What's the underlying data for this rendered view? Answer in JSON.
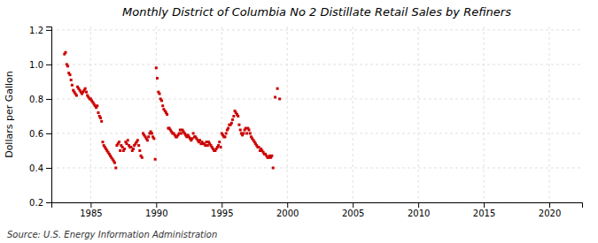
{
  "chart_data": {
    "type": "scatter",
    "title": "Monthly District of Columbia No 2 Distillate Retail Sales by Refiners",
    "ylabel": "Dollars per Gallon",
    "annotations": [
      "Source: U.S. Energy Information Administration"
    ],
    "color": "#cc0000",
    "marker": "square",
    "grid": true,
    "xlim": [
      1982.0,
      2022.5
    ],
    "ylim": [
      0.2,
      1.22
    ],
    "xticks": [
      1985,
      1990,
      1995,
      2000,
      2005,
      2010,
      2015,
      2020
    ],
    "yticks": [
      0.2,
      0.4,
      0.6,
      0.8,
      {
        "value": 1.0,
        "label": "1.0"
      },
      1.2
    ],
    "x": [
      1983.0,
      1983.08,
      1983.17,
      1983.25,
      1983.33,
      1983.42,
      1983.5,
      1983.58,
      1983.67,
      1983.75,
      1983.83,
      1983.92,
      1984.0,
      1984.08,
      1984.17,
      1984.25,
      1984.33,
      1984.42,
      1984.5,
      1984.58,
      1984.67,
      1984.75,
      1984.83,
      1984.92,
      1985.0,
      1985.08,
      1985.17,
      1985.25,
      1985.33,
      1985.42,
      1985.5,
      1985.58,
      1985.67,
      1985.75,
      1985.83,
      1985.92,
      1986.0,
      1986.08,
      1986.17,
      1986.25,
      1986.33,
      1986.42,
      1986.5,
      1986.58,
      1986.67,
      1986.75,
      1986.83,
      1986.92,
      1987.0,
      1987.08,
      1987.17,
      1987.25,
      1987.33,
      1987.42,
      1987.5,
      1987.58,
      1987.67,
      1987.75,
      1987.83,
      1987.92,
      1988.0,
      1988.08,
      1988.17,
      1988.25,
      1988.33,
      1988.42,
      1988.5,
      1988.58,
      1988.67,
      1988.75,
      1988.83,
      1988.92,
      1989.0,
      1989.08,
      1989.17,
      1989.25,
      1989.33,
      1989.42,
      1989.5,
      1989.58,
      1989.67,
      1989.75,
      1989.83,
      1989.92,
      1990.0,
      1990.08,
      1990.17,
      1990.25,
      1990.33,
      1990.42,
      1990.5,
      1990.58,
      1990.67,
      1990.75,
      1990.83,
      1990.92,
      1991.0,
      1991.08,
      1991.17,
      1991.25,
      1991.33,
      1991.42,
      1991.5,
      1991.58,
      1991.67,
      1991.75,
      1991.83,
      1991.92,
      1992.0,
      1992.08,
      1992.17,
      1992.25,
      1992.33,
      1992.42,
      1992.5,
      1992.58,
      1992.67,
      1992.75,
      1992.83,
      1992.92,
      1993.0,
      1993.08,
      1993.17,
      1993.25,
      1993.33,
      1993.42,
      1993.5,
      1993.58,
      1993.67,
      1993.75,
      1993.83,
      1993.92,
      1994.0,
      1994.08,
      1994.17,
      1994.25,
      1994.33,
      1994.42,
      1994.5,
      1994.58,
      1994.67,
      1994.75,
      1994.83,
      1994.92,
      1995.0,
      1995.08,
      1995.17,
      1995.25,
      1995.33,
      1995.42,
      1995.5,
      1995.58,
      1995.67,
      1995.75,
      1995.83,
      1995.92,
      1996.0,
      1996.08,
      1996.17,
      1996.25,
      1996.33,
      1996.42,
      1996.5,
      1996.58,
      1996.67,
      1996.75,
      1996.83,
      1996.92,
      1997.0,
      1997.08,
      1997.17,
      1997.25,
      1997.33,
      1997.42,
      1997.5,
      1997.58,
      1997.67,
      1997.75,
      1997.83,
      1997.92,
      1998.0,
      1998.08,
      1998.17,
      1998.25,
      1998.33,
      1998.42,
      1998.5,
      1998.58,
      1998.67,
      1998.75,
      1998.83,
      1998.92,
      1999.08,
      1999.25,
      1999.42
    ],
    "values": [
      1.06,
      1.07,
      1.0,
      0.99,
      0.95,
      0.94,
      0.91,
      0.88,
      0.85,
      0.84,
      0.83,
      0.82,
      0.87,
      0.86,
      0.85,
      0.84,
      0.83,
      0.84,
      0.85,
      0.86,
      0.84,
      0.82,
      0.81,
      0.8,
      0.8,
      0.79,
      0.78,
      0.77,
      0.76,
      0.75,
      0.76,
      0.72,
      0.7,
      0.69,
      0.67,
      0.55,
      0.53,
      0.52,
      0.51,
      0.5,
      0.49,
      0.48,
      0.47,
      0.46,
      0.45,
      0.44,
      0.43,
      0.4,
      0.53,
      0.54,
      0.55,
      0.5,
      0.53,
      0.52,
      0.5,
      0.51,
      0.55,
      0.54,
      0.56,
      0.53,
      0.52,
      0.52,
      0.5,
      0.51,
      0.53,
      0.54,
      0.55,
      0.56,
      0.53,
      0.5,
      0.47,
      0.46,
      0.6,
      0.59,
      0.58,
      0.57,
      0.56,
      0.58,
      0.6,
      0.61,
      0.6,
      0.58,
      0.57,
      0.45,
      0.98,
      0.92,
      0.84,
      0.83,
      0.8,
      0.79,
      0.76,
      0.74,
      0.73,
      0.72,
      0.71,
      0.63,
      0.63,
      0.62,
      0.61,
      0.6,
      0.6,
      0.59,
      0.58,
      0.58,
      0.59,
      0.6,
      0.62,
      0.6,
      0.62,
      0.61,
      0.6,
      0.59,
      0.58,
      0.59,
      0.58,
      0.57,
      0.56,
      0.57,
      0.6,
      0.58,
      0.58,
      0.57,
      0.56,
      0.55,
      0.56,
      0.54,
      0.55,
      0.54,
      0.54,
      0.53,
      0.55,
      0.53,
      0.55,
      0.54,
      0.53,
      0.52,
      0.51,
      0.5,
      0.5,
      0.51,
      0.52,
      0.53,
      0.55,
      0.52,
      0.6,
      0.59,
      0.58,
      0.58,
      0.6,
      0.62,
      0.63,
      0.65,
      0.65,
      0.66,
      0.68,
      0.7,
      0.73,
      0.72,
      0.71,
      0.7,
      0.65,
      0.62,
      0.6,
      0.59,
      0.6,
      0.62,
      0.63,
      0.6,
      0.63,
      0.62,
      0.6,
      0.58,
      0.57,
      0.56,
      0.55,
      0.54,
      0.53,
      0.52,
      0.52,
      0.5,
      0.51,
      0.5,
      0.49,
      0.48,
      0.48,
      0.47,
      0.46,
      0.46,
      0.47,
      0.46,
      0.47,
      0.4,
      0.81,
      0.86,
      0.8
    ]
  }
}
